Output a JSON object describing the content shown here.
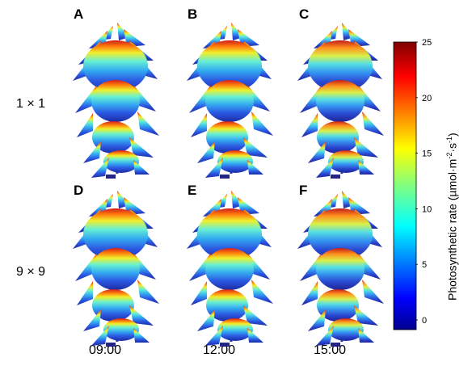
{
  "figure": {
    "panels": [
      {
        "id": "A",
        "row": "1 × 1",
        "time": "09:00"
      },
      {
        "id": "B",
        "row": "1 × 1",
        "time": "12:00"
      },
      {
        "id": "C",
        "row": "1 × 1",
        "time": "15:00"
      },
      {
        "id": "D",
        "row": "9 × 9",
        "time": "09:00"
      },
      {
        "id": "E",
        "row": "9 × 9",
        "time": "12:00"
      },
      {
        "id": "F",
        "row": "9 × 9",
        "time": "15:00"
      }
    ],
    "row_labels": [
      "1 × 1",
      "9 × 9"
    ],
    "column_labels": [
      "09:00",
      "12:00",
      "15:00"
    ],
    "colorbar": {
      "title_main": "Photosynthetic rate (µmol·m",
      "title_sup1": "-2",
      "title_mid": "·s",
      "title_sup2": "-1",
      "title_end": ")",
      "ticks": [
        "0",
        "5",
        "10",
        "15",
        "20",
        "25"
      ],
      "min": 0,
      "max": 25,
      "colormap": "jet"
    },
    "colors": {
      "low": "#00008f",
      "mid_low": "#0080ff",
      "mid": "#40ffc0",
      "mid_high": "#ffff00",
      "high": "#ff4000",
      "top": "#800000"
    }
  }
}
